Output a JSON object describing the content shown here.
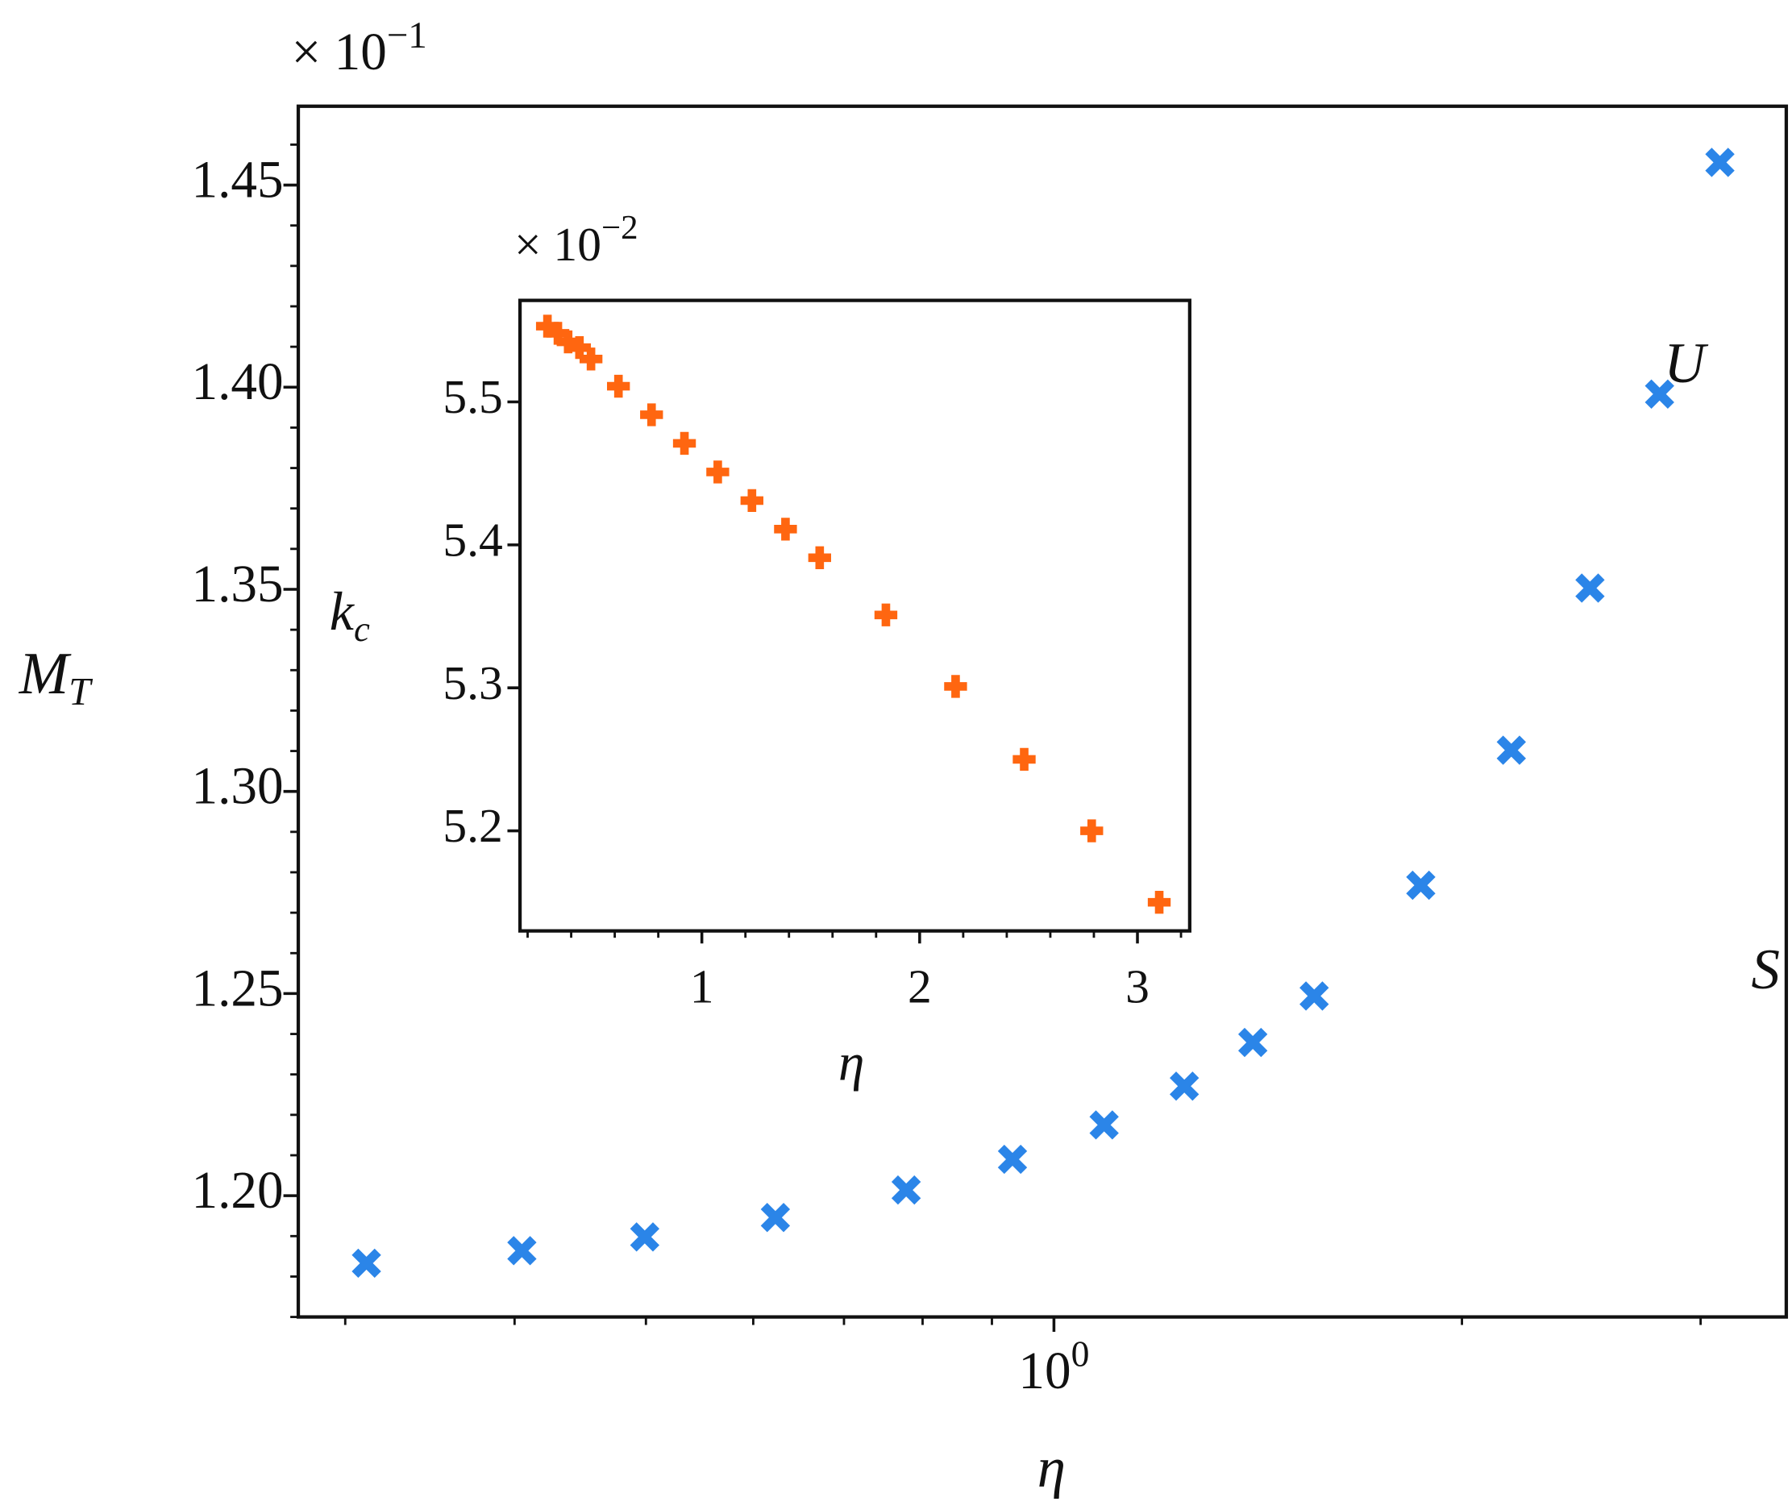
{
  "chart_data": [
    {
      "type": "scatter",
      "marker": "X",
      "xscale": "log",
      "xlabel": "η",
      "ylabel": "M",
      "ylabel_subscript": "T",
      "offset_text": "× 10",
      "offset_exponent": "−1",
      "annotations": [
        {
          "text": "U",
          "x": 2.92,
          "y": 1.4045
        },
        {
          "text": "S",
          "x": 3.35,
          "y": 1.2545
        }
      ],
      "series": [
        {
          "name": "M_T",
          "color": "#2b85e8",
          "x": [
            0.311,
            0.405,
            0.499,
            0.623,
            0.778,
            0.932,
            1.089,
            1.248,
            1.402,
            1.556,
            1.865,
            2.175,
            2.486,
            2.798,
            3.1
          ],
          "values": [
            1.1833,
            1.1864,
            1.1898,
            1.1946,
            1.2014,
            1.209,
            1.2175,
            1.2271,
            1.2379,
            1.2494,
            1.2768,
            1.3102,
            1.3503,
            1.3983,
            1.4556
          ]
        }
      ],
      "xlim": [
        0.277,
        3.47
      ],
      "xticks": [
        {
          "value": 1,
          "label": "10",
          "exponent": "0"
        }
      ],
      "xminorticks": [
        0.3,
        0.4,
        0.5,
        0.6,
        0.7,
        0.8,
        0.9,
        2,
        3
      ],
      "ylim": [
        1.17,
        1.4695
      ],
      "yticks": [
        {
          "value": 1.2,
          "label": "1.20"
        },
        1.25,
        {
          "value": 1.3,
          "label": "1.30"
        },
        1.35,
        {
          "value": 1.4,
          "label": "1.40"
        },
        1.45
      ],
      "yminorticks": [
        1.17,
        1.18,
        1.19,
        1.21,
        1.22,
        1.23,
        1.24,
        1.26,
        1.27,
        1.28,
        1.29,
        1.31,
        1.32,
        1.33,
        1.34,
        1.36,
        1.37,
        1.38,
        1.39,
        1.41,
        1.42,
        1.43,
        1.44,
        1.46
      ]
    },
    {
      "type": "scatter",
      "marker": "P",
      "xscale": "linear",
      "xlabel": "η",
      "ylabel": "k",
      "ylabel_subscript": "c",
      "offset_text": "× 10",
      "offset_exponent": "−2",
      "series": [
        {
          "name": "k_c",
          "color": "#ff6610",
          "x": [
            0.291,
            0.339,
            0.386,
            0.438,
            0.491,
            0.617,
            0.769,
            0.92,
            1.073,
            1.23,
            1.384,
            1.541,
            1.845,
            2.165,
            2.48,
            2.79,
            3.1
          ],
          "values": [
            5.553,
            5.548,
            5.542,
            5.538,
            5.53,
            5.511,
            5.491,
            5.471,
            5.451,
            5.431,
            5.411,
            5.391,
            5.351,
            5.301,
            5.25,
            5.2,
            5.15
          ]
        }
      ],
      "xlim": [
        0.165,
        3.24
      ],
      "xticks": [
        1,
        2,
        3
      ],
      "xminorticks": [
        0.2,
        0.4,
        0.6,
        0.8,
        1.2,
        1.4,
        1.6,
        1.8,
        2.2,
        2.4,
        2.6,
        2.8,
        3.2
      ],
      "ylim": [
        5.13,
        5.571
      ],
      "yticks": [
        5.2,
        5.3,
        5.4,
        5.5
      ]
    }
  ]
}
